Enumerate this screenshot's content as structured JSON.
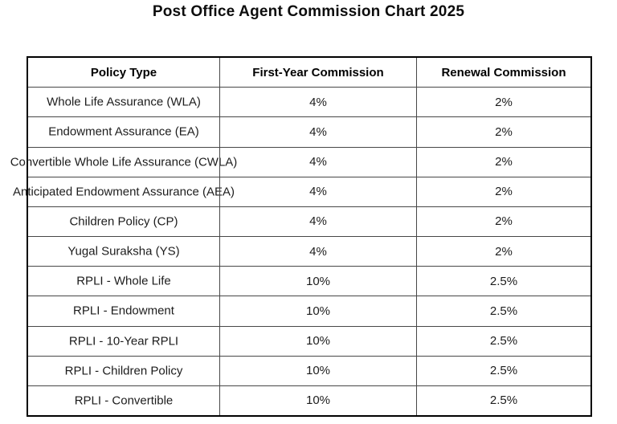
{
  "title": "Post Office Agent Commission Chart 2025",
  "chart_data": {
    "type": "table",
    "title": "Post Office Agent Commission Chart 2025",
    "columns": [
      "Policy Type",
      "First-Year Commission",
      "Renewal Commission"
    ],
    "rows": [
      [
        "Whole Life Assurance (WLA)",
        "4%",
        "2%"
      ],
      [
        "Endowment Assurance (EA)",
        "4%",
        "2%"
      ],
      [
        "Convertible Whole Life Assurance (CWLA)",
        "4%",
        "2%"
      ],
      [
        "Anticipated Endowment Assurance (AEA)",
        "4%",
        "2%"
      ],
      [
        "Children Policy (CP)",
        "4%",
        "2%"
      ],
      [
        "Yugal Suraksha (YS)",
        "4%",
        "2%"
      ],
      [
        "RPLI - Whole Life",
        "10%",
        "2.5%"
      ],
      [
        "RPLI - Endowment",
        "10%",
        "2.5%"
      ],
      [
        "RPLI - 10-Year RPLI",
        "10%",
        "2.5%"
      ],
      [
        "RPLI - Children Policy",
        "10%",
        "2.5%"
      ],
      [
        "RPLI - Convertible",
        "10%",
        "2.5%"
      ]
    ],
    "layout": {
      "border_color": "#000000",
      "divider_color": "#474747",
      "background": "#ffffff",
      "text_color": "#1c1c1c"
    }
  }
}
